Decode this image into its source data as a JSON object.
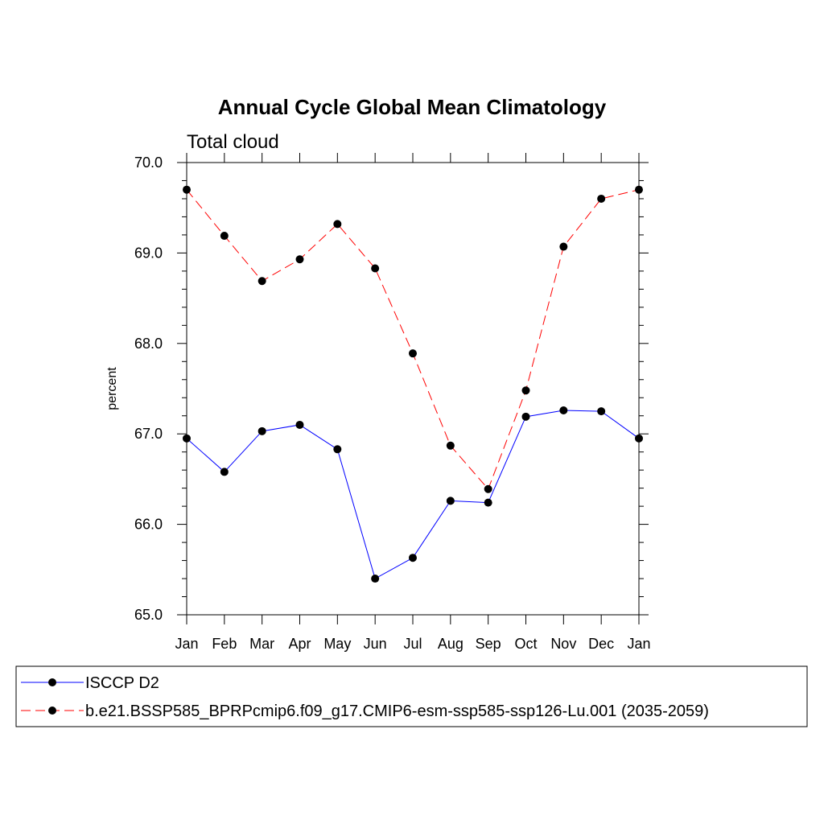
{
  "chart_data": {
    "type": "line",
    "title": "Annual Cycle Global Mean Climatology",
    "subtitle": "Total cloud",
    "ylabel": "percent",
    "xlabel": "",
    "categories": [
      "Jan",
      "Feb",
      "Mar",
      "Apr",
      "May",
      "Jun",
      "Jul",
      "Aug",
      "Sep",
      "Oct",
      "Nov",
      "Dec",
      "Jan"
    ],
    "ylim": [
      65.0,
      70.0
    ],
    "ytick_labels": [
      "65.0",
      "66.0",
      "67.0",
      "68.0",
      "69.0",
      "70.0"
    ],
    "grid": false,
    "legend_position": "bottom",
    "series": [
      {
        "name": "ISCCP D2",
        "color": "#0000ff",
        "dash": "solid",
        "values": [
          66.95,
          66.58,
          67.03,
          67.1,
          66.83,
          65.4,
          65.63,
          66.26,
          66.24,
          67.19,
          67.26,
          67.25,
          66.95
        ]
      },
      {
        "name": "b.e21.BSSP585_BPRPcmip6.f09_g17.CMIP6-esm-ssp585-ssp126-Lu.001 (2035-2059)",
        "color": "#ff0000",
        "dash": "dashed",
        "values": [
          69.7,
          69.19,
          68.69,
          68.93,
          69.32,
          68.83,
          67.89,
          66.87,
          66.39,
          67.48,
          69.07,
          69.6,
          69.7
        ]
      }
    ]
  }
}
